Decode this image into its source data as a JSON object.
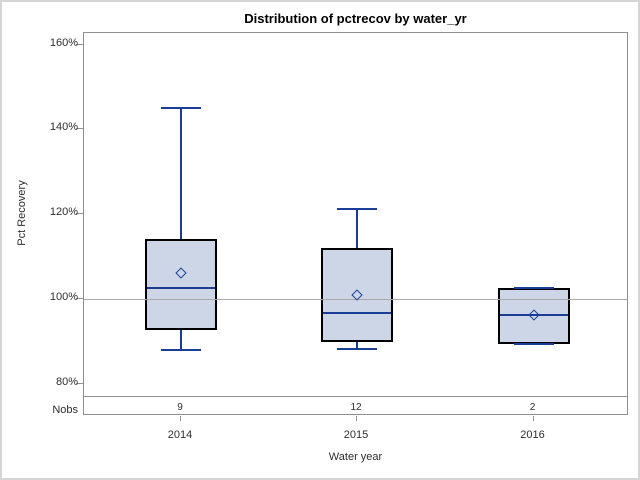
{
  "chart_data": {
    "type": "box",
    "title": "Distribution of pctrecov by water_yr",
    "xlabel": "Water year",
    "ylabel": "Pct Recovery",
    "nobs_row_label": "Nobs",
    "y_tick_values": [
      160,
      140,
      120,
      100,
      80
    ],
    "y_tick_labels": [
      "160%",
      "140%",
      "120%",
      "100%",
      "80%"
    ],
    "ylim": [
      77,
      163
    ],
    "reference_line_y": 100,
    "grid": "off",
    "categories": [
      "2014",
      "2015",
      "2016"
    ],
    "groups": [
      {
        "category": "2014",
        "nobs": 9,
        "whisker_low": 87.9,
        "q1": 92.7,
        "median": 102.7,
        "mean": 106.2,
        "q3": 114.2,
        "whisker_high": 145.0
      },
      {
        "category": "2015",
        "nobs": 12,
        "whisker_low": 88.3,
        "q1": 89.9,
        "median": 96.8,
        "mean": 100.9,
        "q3": 112.1,
        "whisker_high": 121.2
      },
      {
        "category": "2016",
        "nobs": 2,
        "whisker_low": 89.3,
        "q1": 89.3,
        "median": 96.2,
        "mean": 96.2,
        "q3": 102.5,
        "whisker_high": 102.5
      }
    ],
    "colors": {
      "box_fill": "#ccd6e7",
      "box_border": "#000000",
      "line_blue": "#1a3d96",
      "reference_line": "#a9a9a9",
      "axis_frame": "#8f8f8f",
      "text": "#2e2e2e",
      "outer_border": "#d5d5d5"
    }
  }
}
